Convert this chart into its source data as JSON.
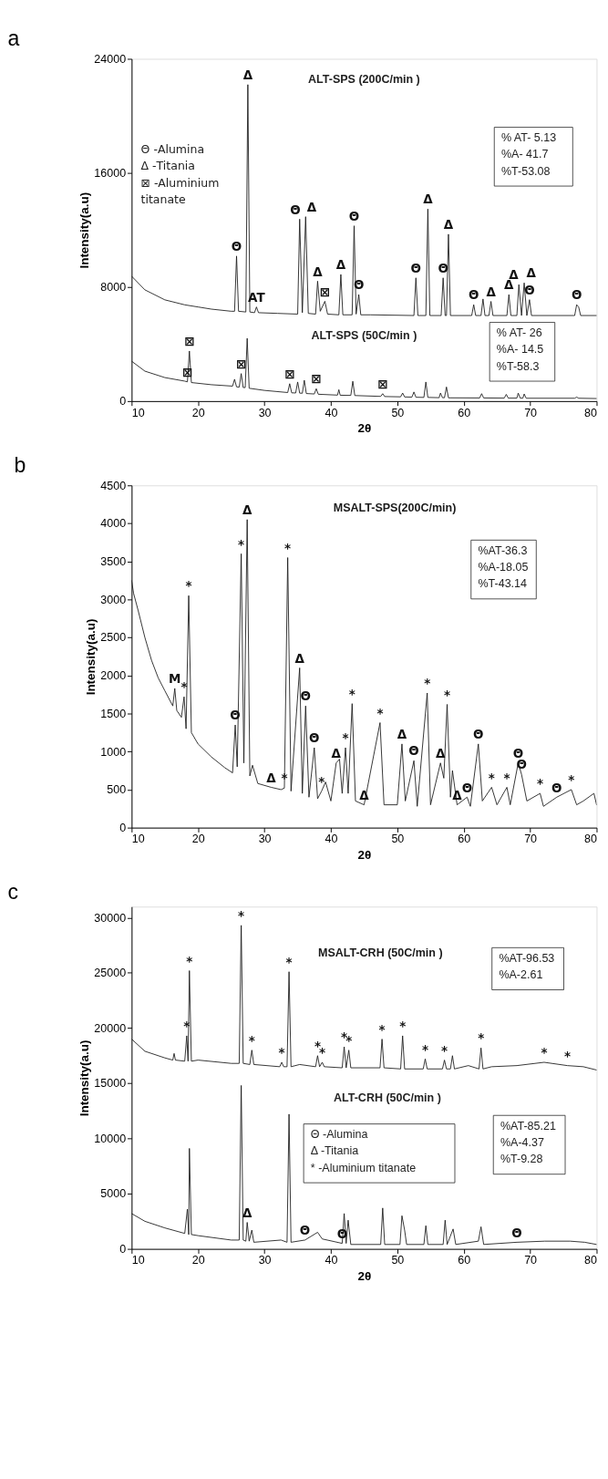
{
  "chart_data": [
    {
      "type": "line",
      "title": "a",
      "xlabel": "2θ",
      "ylabel": "Intensity(a.u)",
      "xlim": [
        10,
        80
      ],
      "ylim": [
        0,
        24000
      ],
      "xticks": [
        10,
        20,
        30,
        40,
        50,
        60,
        70,
        80
      ],
      "yticks": [
        0,
        8000,
        16000,
        24000
      ],
      "grid": false,
      "x": [
        10,
        12,
        15,
        18,
        20,
        22,
        25,
        25.5,
        25.8,
        26.1,
        27.2,
        27.5,
        27.8,
        28.5,
        28.8,
        29.1,
        32,
        35,
        35.3,
        35.7,
        36.2,
        36.6,
        37.7,
        38,
        38.4,
        39.1,
        39.5,
        41.2,
        41.5,
        41.8,
        43.2,
        43.5,
        43.8,
        44.2,
        44.5,
        46,
        52.5,
        52.8,
        53.1,
        54.3,
        54.6,
        54.9,
        56.6,
        56.9,
        57.2,
        57.4,
        57.7,
        58,
        61.2,
        61.5,
        61.8,
        62.6,
        62.9,
        63.2,
        63.8,
        64.1,
        64.4,
        66.5,
        66.8,
        67.1,
        68,
        68.3,
        68.7,
        69.1,
        69.5,
        69.9,
        70.2,
        76.7,
        77,
        77.3,
        77.6,
        80
      ],
      "series": [
        {
          "color": "#1a1a1a",
          "values": [
            8760,
            7800,
            7100,
            6750,
            6600,
            6450,
            6300,
            6300,
            10170,
            6300,
            6250,
            22190,
            6250,
            6200,
            6600,
            6200,
            6150,
            6100,
            12760,
            6200,
            12930,
            6150,
            6100,
            8410,
            6300,
            7000,
            6100,
            6050,
            8880,
            6050,
            6050,
            12290,
            6100,
            7470,
            6050,
            6050,
            6000,
            8640,
            6000,
            6000,
            13470,
            6000,
            6000,
            8640,
            6000,
            6000,
            11700,
            6000,
            6000,
            6760,
            6000,
            6000,
            7160,
            6000,
            6000,
            6990,
            6000,
            6000,
            7470,
            6000,
            6000,
            8170,
            6000,
            8290,
            6000,
            7110,
            6000,
            6000,
            6760,
            6600,
            6000,
            6000
          ]
        },
        {
          "color": "#1a1a1a",
          "x": [
            10,
            12,
            15,
            18,
            18.4,
            18.7,
            19,
            22,
            25.2,
            25.5,
            25.8,
            26.2,
            26.5,
            26.8,
            27.1,
            27.4,
            27.7,
            30,
            33.5,
            33.8,
            34.1,
            34.7,
            35,
            35.3,
            35.7,
            36,
            36.3,
            37.5,
            37.8,
            38.1,
            41,
            41.2,
            41.4,
            43,
            43.3,
            43.6,
            47.5,
            47.8,
            48.1,
            50.5,
            50.8,
            51.1,
            52.2,
            52.5,
            52.8,
            54,
            54.3,
            54.6,
            56.3,
            56.5,
            56.8,
            57.1,
            57.4,
            57.7,
            62.4,
            62.7,
            63,
            66.1,
            66.4,
            66.7,
            68,
            68.2,
            68.5,
            68.9,
            69.1,
            69.4,
            76.7,
            77,
            77.3,
            80
          ],
          "values": [
            2800,
            2100,
            1650,
            1400,
            1350,
            3510,
            1300,
            1150,
            1050,
            1530,
            1000,
            980,
            1930,
            950,
            950,
            4400,
            900,
            750,
            600,
            1220,
            580,
            570,
            1340,
            560,
            550,
            1460,
            530,
            500,
            870,
            480,
            420,
            800,
            410,
            400,
            1390,
            390,
            330,
            520,
            320,
            300,
            565,
            290,
            280,
            640,
            270,
            260,
            1340,
            260,
            240,
            565,
            240,
            240,
            990,
            230,
            220,
            520,
            220,
            210,
            470,
            210,
            210,
            560,
            210,
            205,
            500,
            200,
            200,
            280,
            200,
            180
          ]
        }
      ],
      "annotations": [
        "Θ -Alumina\nΔ -Titania\n⊠ -Aluminium\n   titanate",
        "% AT- 5.13\n%A- 41.7\n%T-53.08",
        "% AT- 26\n%A- 14.5\n%T-58.3",
        "ALT-SPS  (200C/min )",
        "ALT-SPS  (50C/min )",
        {
          "text": "Θ",
          "x": 25.8,
          "y": 10170
        },
        {
          "text": "Δ",
          "x": 27.5,
          "y": 22190
        },
        {
          "text": "AT",
          "x": 28.8,
          "y": 6600
        },
        {
          "text": "Θ",
          "x": 35.3,
          "y": 12760
        },
        {
          "text": "Δ",
          "x": 36.2,
          "y": 12930
        },
        {
          "text": "Δ",
          "x": 38,
          "y": 8410
        },
        {
          "text": "⊠",
          "x": 39.1,
          "y": 7000
        },
        {
          "text": "Δ",
          "x": 41.5,
          "y": 8880
        },
        {
          "text": "Θ",
          "x": 43.5,
          "y": 12290
        },
        {
          "text": "Θ",
          "x": 44.2,
          "y": 7470
        },
        {
          "text": "Θ",
          "x": 52.8,
          "y": 8640
        },
        {
          "text": "Δ",
          "x": 54.6,
          "y": 13470
        },
        {
          "text": "Θ",
          "x": 56.9,
          "y": 8640
        },
        {
          "text": "Δ",
          "x": 57.7,
          "y": 11700
        },
        {
          "text": "Θ",
          "x": 61.5,
          "y": 6760
        },
        {
          "text": "Δ",
          "x": 64.1,
          "y": 6990
        },
        {
          "text": "Δ",
          "x": 66.8,
          "y": 7470
        },
        {
          "text": "Δ",
          "x": 68.3,
          "y": 8170
        },
        {
          "text": "Δ",
          "x": 69.1,
          "y": 8290
        },
        {
          "text": "Θ",
          "x": 69.9,
          "y": 7110
        },
        {
          "text": "Θ",
          "x": 77,
          "y": 6760
        },
        {
          "text": "⊠",
          "x": 18.4,
          "y": 1350
        },
        {
          "text": "⊠",
          "x": 18.7,
          "y": 3510
        },
        {
          "text": "⊠",
          "x": 26.5,
          "y": 1930
        },
        {
          "text": "⊠",
          "x": 33.8,
          "y": 1220
        },
        {
          "text": "⊠",
          "x": 37.8,
          "y": 870
        },
        {
          "text": "⊠",
          "x": 47.8,
          "y": 520
        }
      ]
    },
    {
      "type": "line",
      "title": "b",
      "xlabel": "2θ",
      "ylabel": "Intensity(a.u)",
      "xlim": [
        10,
        80
      ],
      "ylim": [
        0,
        4500
      ],
      "xticks": [
        10,
        20,
        30,
        40,
        50,
        60,
        70,
        80
      ],
      "yticks": [
        0,
        500,
        1000,
        1500,
        2000,
        2500,
        3000,
        3500,
        4000,
        4500
      ],
      "grid": false,
      "x": [
        10,
        10.3,
        11,
        12,
        13,
        14,
        15,
        16.2,
        16.5,
        16.8,
        17.5,
        17.9,
        18.2,
        18.6,
        19,
        20,
        22,
        24,
        25.2,
        25.6,
        25.9,
        26.5,
        26.9,
        27.4,
        27.8,
        28.2,
        29,
        31,
        32.5,
        33,
        33.5,
        34,
        35.3,
        35.7,
        36.2,
        36.7,
        37.5,
        38,
        38.6,
        39.2,
        40,
        40.8,
        41.3,
        41.7,
        42.2,
        42.6,
        43.2,
        43.7,
        45,
        47.4,
        48,
        50,
        50.7,
        51.2,
        52.5,
        53,
        54.5,
        55,
        56.5,
        57,
        57.5,
        58,
        58.3,
        59,
        60.5,
        61,
        62.2,
        62.8,
        64.2,
        65,
        66.5,
        67,
        68.2,
        68.7,
        69.5,
        71.5,
        72,
        74,
        76.2,
        77,
        78,
        79.6,
        80
      ],
      "series": [
        {
          "name": "MSALT-SPS(200C/min)",
          "color": "#1a1a1a",
          "values": [
            3250,
            3080,
            2850,
            2500,
            2200,
            1970,
            1800,
            1600,
            1830,
            1540,
            1450,
            1720,
            1300,
            3050,
            1250,
            1100,
            930,
            790,
            720,
            1350,
            800,
            3600,
            850,
            4050,
            680,
            820,
            580,
            530,
            500,
            520,
            3550,
            480,
            2100,
            450,
            1600,
            400,
            1050,
            380,
            480,
            600,
            350,
            850,
            900,
            450,
            1050,
            450,
            1630,
            350,
            300,
            1380,
            300,
            300,
            1100,
            350,
            880,
            280,
            1770,
            300,
            850,
            650,
            1620,
            400,
            750,
            300,
            400,
            280,
            1100,
            350,
            530,
            300,
            530,
            300,
            850,
            700,
            350,
            450,
            280,
            400,
            500,
            300,
            350,
            450,
            300
          ]
        }
      ],
      "annotations": [
        "%AT-36.3\n%A-18.05\n%T-43.14",
        {
          "text": "M",
          "x": 16.5,
          "y": 1830
        },
        {
          "text": "*",
          "x": 17.9,
          "y": 1720
        },
        {
          "text": "*",
          "x": 18.6,
          "y": 3050
        },
        {
          "text": "Θ",
          "x": 25.6,
          "y": 1350
        },
        {
          "text": "*",
          "x": 26.5,
          "y": 3600
        },
        {
          "text": "Δ",
          "x": 27.4,
          "y": 4050
        },
        {
          "text": "Δ",
          "x": 31,
          "y": 530
        },
        {
          "text": "*",
          "x": 33,
          "y": 520
        },
        {
          "text": "*",
          "x": 33.5,
          "y": 3550
        },
        {
          "text": "Δ",
          "x": 35.3,
          "y": 2100
        },
        {
          "text": "Θ",
          "x": 36.2,
          "y": 1600
        },
        {
          "text": "Θ",
          "x": 37.5,
          "y": 1050
        },
        {
          "text": "*",
          "x": 38.6,
          "y": 480
        },
        {
          "text": "Δ",
          "x": 40.8,
          "y": 850
        },
        {
          "text": "*",
          "x": 42.2,
          "y": 1050
        },
        {
          "text": "*",
          "x": 43.2,
          "y": 1630
        },
        {
          "text": "Δ",
          "x": 45,
          "y": 300
        },
        {
          "text": "*",
          "x": 47.4,
          "y": 1380
        },
        {
          "text": "Δ",
          "x": 50.7,
          "y": 1100
        },
        {
          "text": "Θ",
          "x": 52.5,
          "y": 880
        },
        {
          "text": "*",
          "x": 54.5,
          "y": 1770
        },
        {
          "text": "Δ",
          "x": 56.5,
          "y": 850
        },
        {
          "text": "*",
          "x": 57.5,
          "y": 1620
        },
        {
          "text": "Δ",
          "x": 59,
          "y": 300
        },
        {
          "text": "Θ",
          "x": 60.5,
          "y": 400
        },
        {
          "text": "Θ",
          "x": 62.2,
          "y": 1100
        },
        {
          "text": "*",
          "x": 64.2,
          "y": 530
        },
        {
          "text": "*",
          "x": 66.5,
          "y": 530
        },
        {
          "text": "Θ",
          "x": 68.2,
          "y": 850
        },
        {
          "text": "Θ",
          "x": 68.7,
          "y": 700
        },
        {
          "text": "*",
          "x": 71.5,
          "y": 450
        },
        {
          "text": "Θ",
          "x": 74,
          "y": 400
        },
        {
          "text": "*",
          "x": 76.2,
          "y": 500
        }
      ]
    },
    {
      "type": "line",
      "title": "c",
      "xlabel": "2θ",
      "ylabel": "Intensity(a.u)",
      "xlim": [
        10,
        80
      ],
      "ylim": [
        0,
        31000
      ],
      "xticks": [
        10,
        20,
        30,
        40,
        50,
        60,
        70,
        80
      ],
      "yticks": [
        0,
        5000,
        10000,
        15000,
        20000,
        25000,
        30000
      ],
      "grid": false,
      "series": [
        {
          "name": "MSALT-CRH  (50C/min )",
          "color": "#1a1a1a",
          "x": [
            10,
            12,
            15,
            16.2,
            16.4,
            16.6,
            18,
            18.3,
            18.5,
            18.7,
            19,
            20,
            25,
            26.2,
            26.5,
            26.8,
            27.8,
            28.1,
            28.4,
            32.3,
            32.6,
            32.9,
            33.4,
            33.7,
            34,
            35.3,
            37.7,
            38,
            38.3,
            38.7,
            39,
            41.7,
            42,
            42.3,
            42.7,
            43,
            47.4,
            47.7,
            48,
            50.5,
            50.8,
            51.1,
            53.9,
            54.2,
            54.5,
            56.8,
            57.1,
            57.4,
            58,
            58.3,
            58.6,
            60.7,
            62.3,
            62.6,
            62.9,
            64.2,
            68,
            72.1,
            75.6,
            78,
            80
          ],
          "values": [
            19000,
            17900,
            17300,
            17100,
            17700,
            17100,
            17000,
            19300,
            17000,
            25200,
            17000,
            17100,
            16800,
            16800,
            29300,
            16800,
            16700,
            18000,
            16700,
            16500,
            16900,
            16500,
            16500,
            25100,
            16500,
            16700,
            16500,
            17500,
            16500,
            16900,
            16500,
            16400,
            18300,
            16400,
            18000,
            16400,
            16400,
            19000,
            16400,
            16300,
            19300,
            16300,
            16300,
            17200,
            16300,
            16300,
            17100,
            16300,
            16300,
            17500,
            16300,
            16600,
            16300,
            18200,
            16300,
            16500,
            16600,
            16900,
            16600,
            16500,
            16200
          ]
        },
        {
          "color": "#1a1a1a",
          "x": [
            10,
            12,
            15,
            18,
            18.4,
            18.6,
            18.7,
            19,
            20,
            25,
            26.2,
            26.5,
            26.8,
            27.2,
            27.4,
            27.7,
            28.1,
            28.4,
            32.5,
            33.4,
            33.7,
            34,
            36.1,
            38,
            38.7,
            41.7,
            42,
            42.3,
            42.6,
            43,
            47.5,
            47.8,
            48.1,
            50.4,
            50.7,
            51.1,
            51.4,
            54,
            54.3,
            54.6,
            56.9,
            57.2,
            57.5,
            58.4,
            58.8,
            62.2,
            62.6,
            63,
            68,
            72.2,
            76,
            78.2,
            80
          ],
          "values": [
            3200,
            2500,
            1900,
            1400,
            3600,
            1300,
            9100,
            1300,
            1200,
            800,
            800,
            14800,
            800,
            700,
            2400,
            700,
            1700,
            600,
            800,
            600,
            12200,
            600,
            800,
            1500,
            900,
            500,
            3200,
            500,
            2600,
            400,
            400,
            3700,
            400,
            400,
            3000,
            1700,
            400,
            400,
            2100,
            400,
            400,
            2600,
            400,
            1800,
            400,
            700,
            2000,
            400,
            600,
            700,
            700,
            600,
            400
          ]
        }
      ],
      "annotations": [
        "%AT-96.53\n%A-2.61",
        "%AT-85.21\n%A-4.37\n%T-9.28",
        "Θ -Alumina\nΔ -Titania\n* -Aluminium titanate",
        "ALT-CRH  (50C/min )",
        {
          "text": "*",
          "x": 18.3,
          "y": 19300
        },
        {
          "text": "*",
          "x": 18.7,
          "y": 25200
        },
        {
          "text": "*",
          "x": 26.5,
          "y": 29300
        },
        {
          "text": "*",
          "x": 28.1,
          "y": 18000
        },
        {
          "text": "*",
          "x": 32.6,
          "y": 16900
        },
        {
          "text": "*",
          "x": 33.7,
          "y": 25100
        },
        {
          "text": "*",
          "x": 38,
          "y": 17500
        },
        {
          "text": "*",
          "x": 38.7,
          "y": 16900
        },
        {
          "text": "*",
          "x": 42,
          "y": 18300
        },
        {
          "text": "*",
          "x": 42.7,
          "y": 18000
        },
        {
          "text": "*",
          "x": 47.7,
          "y": 19000
        },
        {
          "text": "*",
          "x": 50.8,
          "y": 19300
        },
        {
          "text": "*",
          "x": 54.2,
          "y": 17200
        },
        {
          "text": "*",
          "x": 57.1,
          "y": 17100
        },
        {
          "text": "*",
          "x": 62.6,
          "y": 18200
        },
        {
          "text": "*",
          "x": 72.1,
          "y": 16900
        },
        {
          "text": "*",
          "x": 75.6,
          "y": 16600
        },
        {
          "text": "Δ",
          "x": 27.4,
          "y": 2400
        },
        {
          "text": "Θ",
          "x": 36.1,
          "y": 800
        },
        {
          "text": "Θ",
          "x": 41.7,
          "y": 500
        },
        {
          "text": "Θ",
          "x": 68,
          "y": 600
        }
      ]
    }
  ]
}
